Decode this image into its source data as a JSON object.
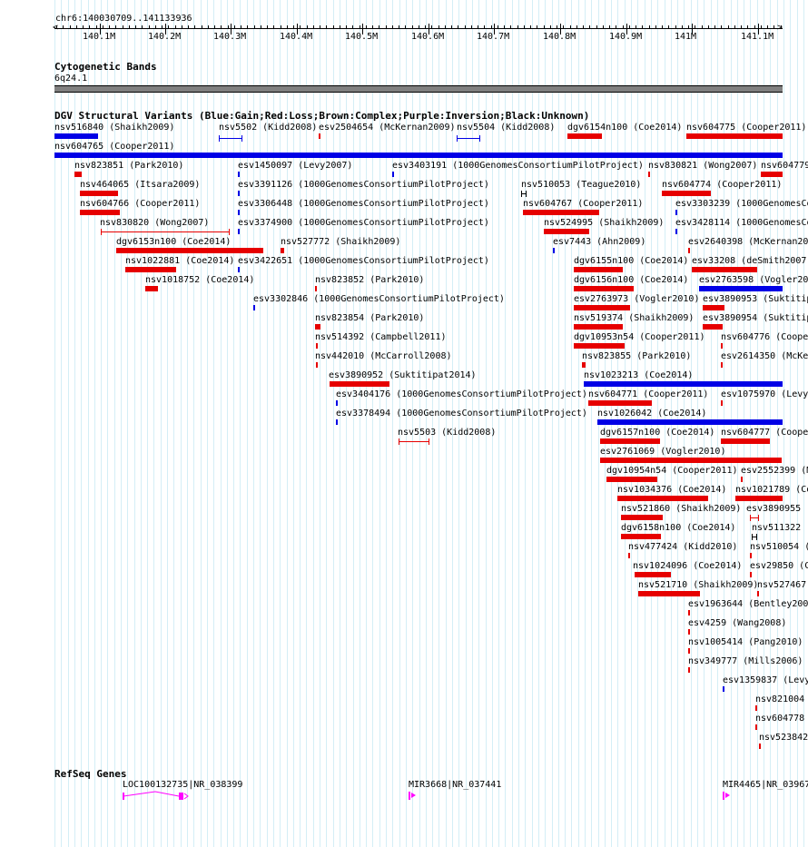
{
  "location": "chr6:140030709..141133936",
  "ruler": {
    "ticks": [
      "140.1M",
      "140.2M",
      "140.3M",
      "140.4M",
      "140.5M",
      "140.6M",
      "140.7M",
      "140.8M",
      "140.9M",
      "141M",
      "141.1M"
    ]
  },
  "cytogenetic": {
    "title": "Cytogenetic Bands",
    "band": "6q24.1"
  },
  "dgv": {
    "title": "DGV Structural Variants (Blue:Gain;Red:Loss;Brown:Complex;Purple:Inversion;Black:Unknown)",
    "colors": {
      "gain": "#0000e6",
      "loss": "#e60000",
      "complex": "#8b4513",
      "inversion": "#800080",
      "unknown": "#000000"
    }
  },
  "variants": [
    {
      "label": "nsv516840 (Shaikh2009)"
    },
    {
      "label": "nsv5502 (Kidd2008)"
    },
    {
      "label": "esv2504654 (McKernan2009)"
    },
    {
      "label": "nsv5504 (Kidd2008)"
    },
    {
      "label": "dgv6154n100 (Coe2014)"
    },
    {
      "label": "nsv604775 (Cooper2011)"
    },
    {
      "label": "nsv604765 (Cooper2011)"
    },
    {
      "label": "nsv823851 (Park2010)"
    },
    {
      "label": "esv1450097 (Levy2007)"
    },
    {
      "label": "esv3403191 (1000GenomesConsortiumPilotProject)"
    },
    {
      "label": "nsv830821 (Wong2007)"
    },
    {
      "label": "nsv604779"
    },
    {
      "label": "nsv464065 (Itsara2009)"
    },
    {
      "label": "esv3391126 (1000GenomesConsortiumPilotProject)"
    },
    {
      "label": "nsv510053 (Teague2010)"
    },
    {
      "label": "nsv604774 (Cooper2011)"
    },
    {
      "label": "nsv604766 (Cooper2011)"
    },
    {
      "label": "esv3306448 (1000GenomesConsortiumPilotProject)"
    },
    {
      "label": "nsv604767 (Cooper2011)"
    },
    {
      "label": "esv3303239 (1000GenomesCo"
    },
    {
      "label": "nsv830820 (Wong2007)"
    },
    {
      "label": "esv3374900 (1000GenomesConsortiumPilotProject)"
    },
    {
      "label": "nsv524995 (Shaikh2009)"
    },
    {
      "label": "esv3428114 (1000GenomesCo"
    },
    {
      "label": "dgv6153n100 (Coe2014)"
    },
    {
      "label": "nsv527772 (Shaikh2009)"
    },
    {
      "label": "esv7443 (Ahn2009)"
    },
    {
      "label": "esv2640398 (McKernan20"
    },
    {
      "label": "nsv1022881 (Coe2014)"
    },
    {
      "label": "esv3422651 (1000GenomesConsortiumPilotProject)"
    },
    {
      "label": "dgv6155n100 (Coe2014)"
    },
    {
      "label": "esv33208 (deSmith2007)"
    },
    {
      "label": "nsv1018752 (Coe2014)"
    },
    {
      "label": "nsv823852 (Park2010)"
    },
    {
      "label": "dgv6156n100 (Coe2014)"
    },
    {
      "label": "esv2763598 (Vogler20"
    },
    {
      "label": "esv3302846 (1000GenomesConsortiumPilotProject)"
    },
    {
      "label": "esv2763973 (Vogler2010)"
    },
    {
      "label": "esv3890953 (Suktitip"
    },
    {
      "label": "nsv823854 (Park2010)"
    },
    {
      "label": "nsv519374 (Shaikh2009)"
    },
    {
      "label": "esv3890954 (Suktitip"
    },
    {
      "label": "nsv514392 (Campbell2011)"
    },
    {
      "label": "dgv10953n54 (Cooper2011)"
    },
    {
      "label": "nsv604776 (Cooper"
    },
    {
      "label": "nsv442010 (McCarroll2008)"
    },
    {
      "label": "nsv823855 (Park2010)"
    },
    {
      "label": "esv2614350 (McKe"
    },
    {
      "label": "esv3890952 (Suktitipat2014)"
    },
    {
      "label": "nsv1023213 (Coe2014)"
    },
    {
      "label": "esv3404176 (1000GenomesConsortiumPilotProject)"
    },
    {
      "label": "nsv604771 (Cooper2011)"
    },
    {
      "label": "esv1075970 (Levy"
    },
    {
      "label": "esv3378494 (1000GenomesConsortiumPilotProject)"
    },
    {
      "label": "nsv1026042 (Coe2014)"
    },
    {
      "label": "nsv5503 (Kidd2008)"
    },
    {
      "label": "dgv6157n100 (Coe2014)"
    },
    {
      "label": "nsv604777 (Coope"
    },
    {
      "label": "esv2761069 (Vogler2010)"
    },
    {
      "label": "dgv10954n54 (Cooper2011)"
    },
    {
      "label": "esv2552399 (M"
    },
    {
      "label": "nsv1034376 (Coe2014)"
    },
    {
      "label": "nsv1021789 (Co"
    },
    {
      "label": "nsv521860 (Shaikh2009)"
    },
    {
      "label": "esv3890955"
    },
    {
      "label": "dgv6158n100 (Coe2014)"
    },
    {
      "label": "nsv511322 (C"
    },
    {
      "label": "nsv477424 (Kidd2010)"
    },
    {
      "label": "nsv510054 ("
    },
    {
      "label": "nsv1024096 (Coe2014)"
    },
    {
      "label": "esv29850 (C"
    },
    {
      "label": "nsv521710 (Shaikh2009)"
    },
    {
      "label": "nsv527467"
    },
    {
      "label": "esv1963644 (Bentley200"
    },
    {
      "label": "esv4259 (Wang2008)"
    },
    {
      "label": "nsv1005414 (Pang2010)"
    },
    {
      "label": "nsv349777 (Mills2006)"
    },
    {
      "label": "esv1359837 (Levy"
    },
    {
      "label": "nsv821004"
    },
    {
      "label": "nsv604778"
    },
    {
      "label": "nsv523842"
    }
  ],
  "refseq": {
    "title": "RefSeq Genes",
    "genes": [
      {
        "label": "LOC100132735|NR_038399"
      },
      {
        "label": "MIR3668|NR_037441"
      },
      {
        "label": "MIR4465|NR_03967"
      }
    ],
    "color": "#ff00ff"
  }
}
